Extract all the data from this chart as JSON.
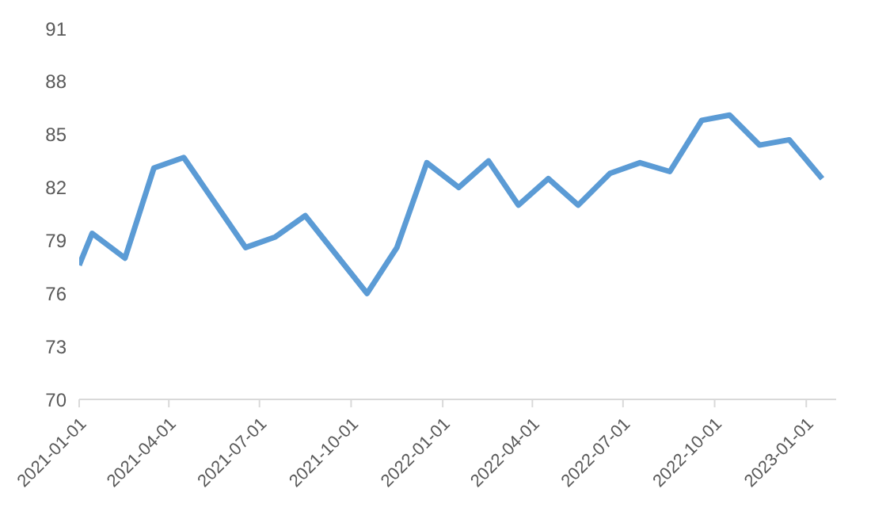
{
  "chart_data": {
    "type": "line",
    "x": [
      "2021-01-01",
      "2021-01-14",
      "2021-02-16",
      "2021-03-17",
      "2021-04-16",
      "2021-06-17",
      "2021-07-17",
      "2021-08-16",
      "2021-10-17",
      "2021-11-16",
      "2021-12-16",
      "2022-01-17",
      "2022-02-16",
      "2022-03-18",
      "2022-04-17",
      "2022-05-17",
      "2022-06-18",
      "2022-07-18",
      "2022-08-17",
      "2022-09-18",
      "2022-10-16",
      "2022-11-15",
      "2022-12-15",
      "2023-01-17"
    ],
    "series": [
      {
        "color": "#5b9bd5",
        "values": [
          77.6,
          79.4,
          78.0,
          83.1,
          83.7,
          78.6,
          79.2,
          80.4,
          76.0,
          78.6,
          83.4,
          82.0,
          83.5,
          81.0,
          82.5,
          81.0,
          82.8,
          83.4,
          82.9,
          85.8,
          86.1,
          84.4,
          84.7,
          82.5
        ]
      }
    ],
    "xlim": [
      "2021-01-01",
      "2023-01-31"
    ],
    "xticks": [
      "2021-01-01",
      "2021-04-01",
      "2021-07-01",
      "2021-10-01",
      "2022-01-01",
      "2022-04-01",
      "2022-07-01",
      "2022-10-01",
      "2023-01-01"
    ],
    "ylim": [
      70,
      91
    ],
    "yticks": [
      70,
      73,
      76,
      79,
      82,
      85,
      88,
      91
    ],
    "grid": false,
    "legend": false,
    "marker": "none",
    "line_style": "solid"
  }
}
